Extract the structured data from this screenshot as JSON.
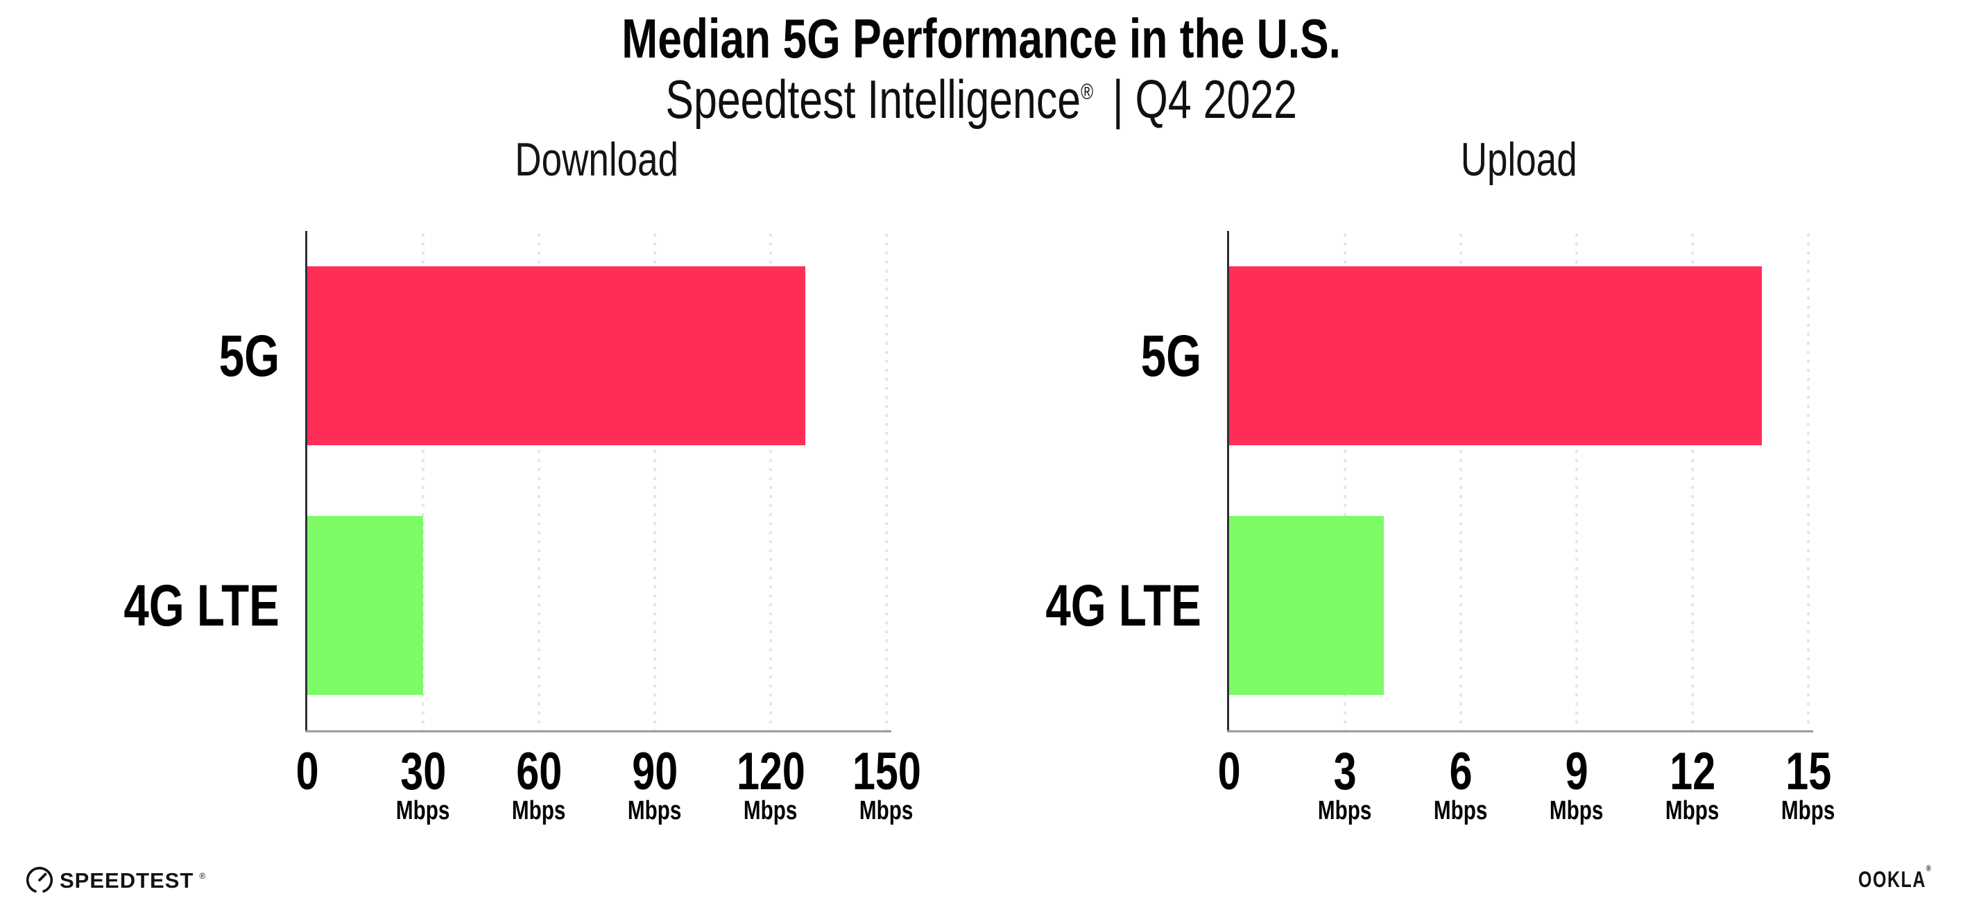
{
  "header": {
    "title": "Median 5G Performance in the U.S.",
    "subtitle": {
      "brand": "Speedtest Intelligence",
      "reg": "®",
      "rest": "| Q4 2022"
    }
  },
  "colors": {
    "bar_5g": "#FF2E56",
    "bar_4g_lte": "#7DFB66",
    "gridline": "#E3E3EE",
    "y_axis": "#2E2E3A",
    "x_axis": "#9B9BA2"
  },
  "chart_data": [
    {
      "type": "bar",
      "orientation": "horizontal",
      "title": "Download",
      "categories": [
        "5G",
        "4G LTE"
      ],
      "values": [
        129,
        30
      ],
      "unit": "Mbps",
      "xlim": [
        0,
        150
      ],
      "xticks": [
        0,
        30,
        60,
        90,
        120,
        150
      ],
      "grid": "dotted-vertical",
      "bar_colors": [
        "#FF2E56",
        "#7DFB66"
      ]
    },
    {
      "type": "bar",
      "orientation": "horizontal",
      "title": "Upload",
      "categories": [
        "5G",
        "4G LTE"
      ],
      "values": [
        13.8,
        4
      ],
      "unit": "Mbps",
      "xlim": [
        0,
        15
      ],
      "xticks": [
        0,
        3,
        6,
        9,
        12,
        15
      ],
      "grid": "dotted-vertical",
      "bar_colors": [
        "#FF2E56",
        "#7DFB66"
      ]
    }
  ],
  "footer": {
    "speedtest_label": "SPEEDTEST",
    "speedtest_reg": "®",
    "ookla_label": "OOKLA",
    "ookla_reg": "®"
  }
}
